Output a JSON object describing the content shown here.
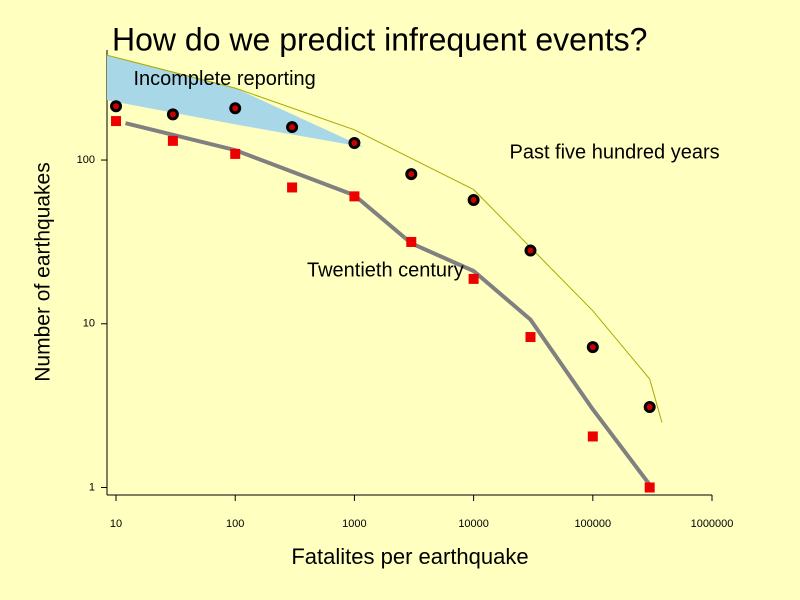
{
  "chart_data": {
    "type": "scatter",
    "title": "How do we predict infrequent events?",
    "x_label": "Fatalites per earthquake",
    "y_label": "Number of earthquakes",
    "log_x": true,
    "log_y": true,
    "xlim": [
      8.4,
      1000000
    ],
    "ylim": [
      0.9,
      470
    ],
    "xticks": [
      10,
      100,
      1000,
      10000,
      100000,
      1000000
    ],
    "yticks": [
      1,
      10,
      100
    ],
    "x": [
      10,
      30,
      100,
      300,
      1000,
      3000,
      10000,
      30000,
      100000,
      300000
    ],
    "series": [
      {
        "name": "Past five hundred years",
        "color": "#cc0000",
        "values": [
          213,
          190,
          207,
          159,
          127,
          82,
          57,
          28,
          7.2,
          3.1
        ]
      },
      {
        "name": "Twentieth century",
        "color": "#ee0000",
        "values": [
          173,
          131,
          109,
          68,
          60,
          31.6,
          18.8,
          8.3,
          2.05,
          1
        ]
      }
    ],
    "curves": [
      {
        "color": "#aaaa00",
        "x": [
          8.4,
          100,
          1000,
          10000,
          100000,
          300000,
          380000
        ],
        "values": [
          437,
          275,
          153,
          66,
          12,
          4.6,
          2.5
        ]
      },
      {
        "color": "#808080",
        "x": [
          12,
          100,
          1000,
          3000,
          10000,
          30000,
          100000,
          300000
        ],
        "values": [
          168,
          115,
          61,
          31,
          21,
          10.6,
          3.0,
          1.04
        ]
      }
    ],
    "shaded_region": {
      "color": "#a8d8e8",
      "x": [
        8.4,
        100,
        1200
      ],
      "upper": [
        437,
        275,
        120
      ],
      "lower": [
        232,
        165,
        120
      ]
    },
    "annotations": [
      {
        "text": "Incomplete reporting",
        "x": 14,
        "y": 310
      },
      {
        "text": "Past five hundred years",
        "x": 20000,
        "y": 110
      },
      {
        "text": "Twentieth century",
        "x": 400,
        "y": 21
      }
    ]
  }
}
